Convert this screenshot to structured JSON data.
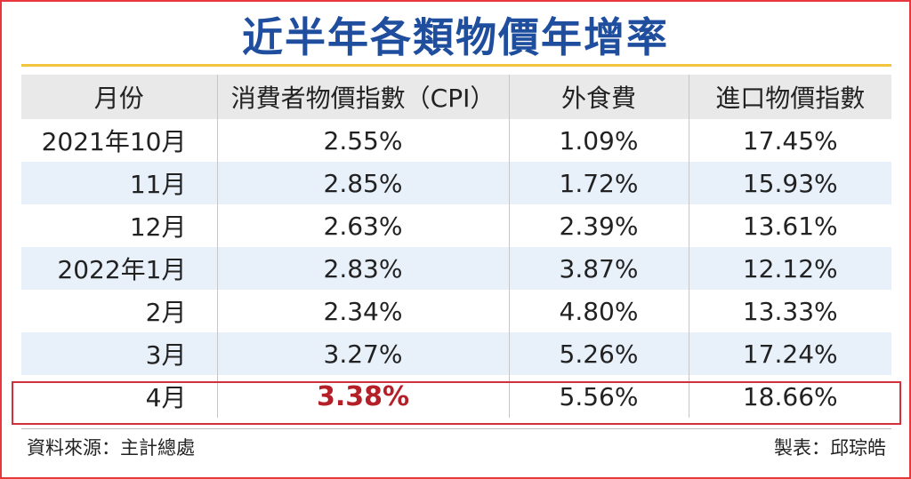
{
  "title": "近半年各類物價年增率",
  "headers": [
    "月份",
    "消費者物價指數（CPI）",
    "外食費",
    "進口物價指數"
  ],
  "rows": [
    [
      "2021年10月",
      "2.55%",
      "1.09%",
      "17.45%"
    ],
    [
      "11月",
      "2.85%",
      "1.72%",
      "15.93%"
    ],
    [
      "12月",
      "2.63%",
      "2.39%",
      "13.61%"
    ],
    [
      "2022年1月",
      "2.83%",
      "3.87%",
      "12.12%"
    ],
    [
      "2月",
      "2.34%",
      "4.80%",
      "13.33%"
    ],
    [
      "3月",
      "3.27%",
      "5.26%",
      "17.24%"
    ],
    [
      "4月",
      "3.38%",
      "5.56%",
      "18.66%"
    ]
  ],
  "source": "資料來源：主計總處",
  "author": "製表：邱琮皓",
  "colors": {
    "title": "#1f4e9e",
    "border": "#e8383d",
    "title_rule": "#f2c53d",
    "header_bg": "#e9e9e9",
    "alt_row_bg": "#e8f0fa",
    "emphasis": "#b51f27"
  },
  "chart_data": {
    "type": "table",
    "title": "近半年各類物價年增率",
    "columns": [
      "月份",
      "消費者物價指數（CPI）",
      "外食費",
      "進口物價指數"
    ],
    "categories": [
      "2021年10月",
      "11月",
      "12月",
      "2022年1月",
      "2月",
      "3月",
      "4月"
    ],
    "series": [
      {
        "name": "消費者物價指數（CPI）",
        "values": [
          2.55,
          2.85,
          2.63,
          2.83,
          2.34,
          3.27,
          3.38
        ]
      },
      {
        "name": "外食費",
        "values": [
          1.09,
          1.72,
          2.39,
          3.87,
          4.8,
          5.26,
          5.56
        ]
      },
      {
        "name": "進口物價指數",
        "values": [
          17.45,
          15.93,
          13.61,
          12.12,
          13.33,
          17.24,
          18.66
        ]
      }
    ],
    "highlighted_row": "4月",
    "highlighted_value": "3.38%"
  }
}
